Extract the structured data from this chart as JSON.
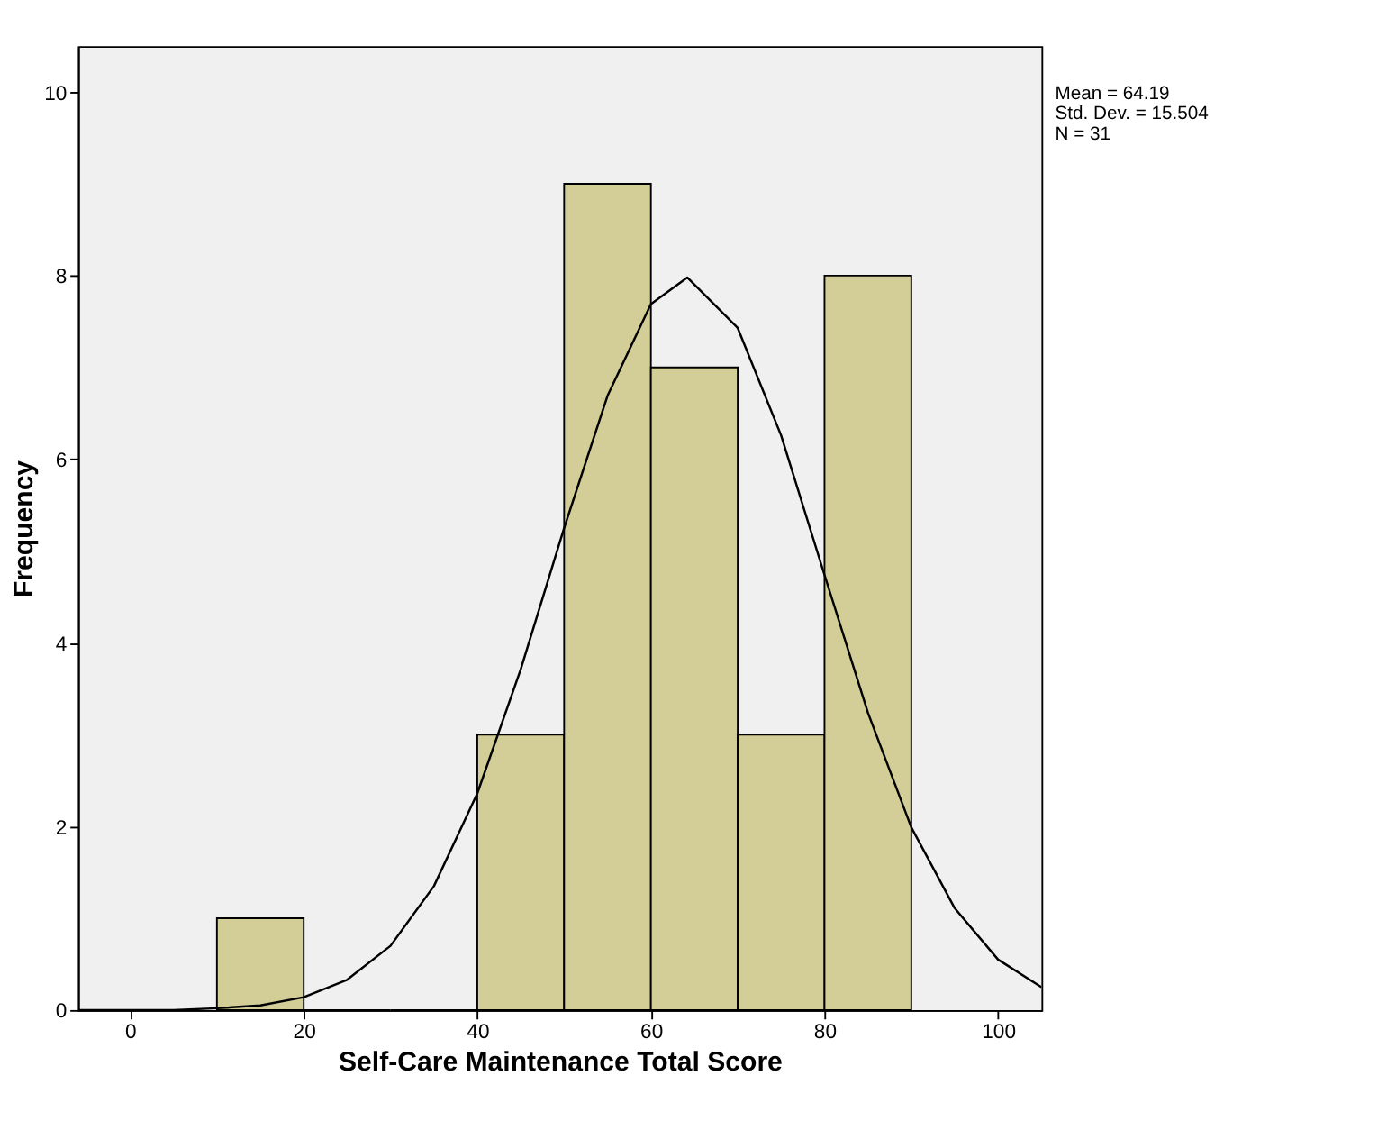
{
  "chart_data": {
    "type": "histogram",
    "xlabel": "Self-Care Maintenance Total Score",
    "ylabel": "Frequency",
    "bins": [
      10,
      20,
      30,
      40,
      50,
      60,
      70,
      80,
      90
    ],
    "values": [
      1,
      0,
      0,
      3,
      9,
      7,
      3,
      8
    ],
    "color": "#d3ce97",
    "series": [
      {
        "type": "line",
        "color": "#000000",
        "x": [
          -6,
          0,
          5,
          10,
          15,
          20,
          25,
          30,
          35,
          40,
          45,
          50,
          55,
          60,
          64.19,
          70,
          75,
          80,
          85,
          90,
          95,
          100,
          105
        ],
        "values": [
          0,
          0,
          0,
          0.02,
          0.05,
          0.14,
          0.33,
          0.7,
          1.35,
          2.36,
          3.71,
          5.25,
          6.69,
          7.69,
          7.98,
          7.43,
          6.26,
          4.74,
          3.24,
          1.99,
          1.11,
          0.55,
          0.25
        ]
      }
    ],
    "xlim": [
      -6,
      105
    ],
    "ylim": [
      0,
      10.5
    ],
    "xticks": [
      0,
      20,
      40,
      60,
      80,
      100
    ],
    "yticks": [
      0,
      2,
      4,
      6,
      8,
      10
    ],
    "grid": false,
    "marker": "none",
    "line_style": "solid",
    "annotations": [
      "Mean = 64.19",
      "Std. Dev. = 15.504",
      "N = 31"
    ]
  }
}
